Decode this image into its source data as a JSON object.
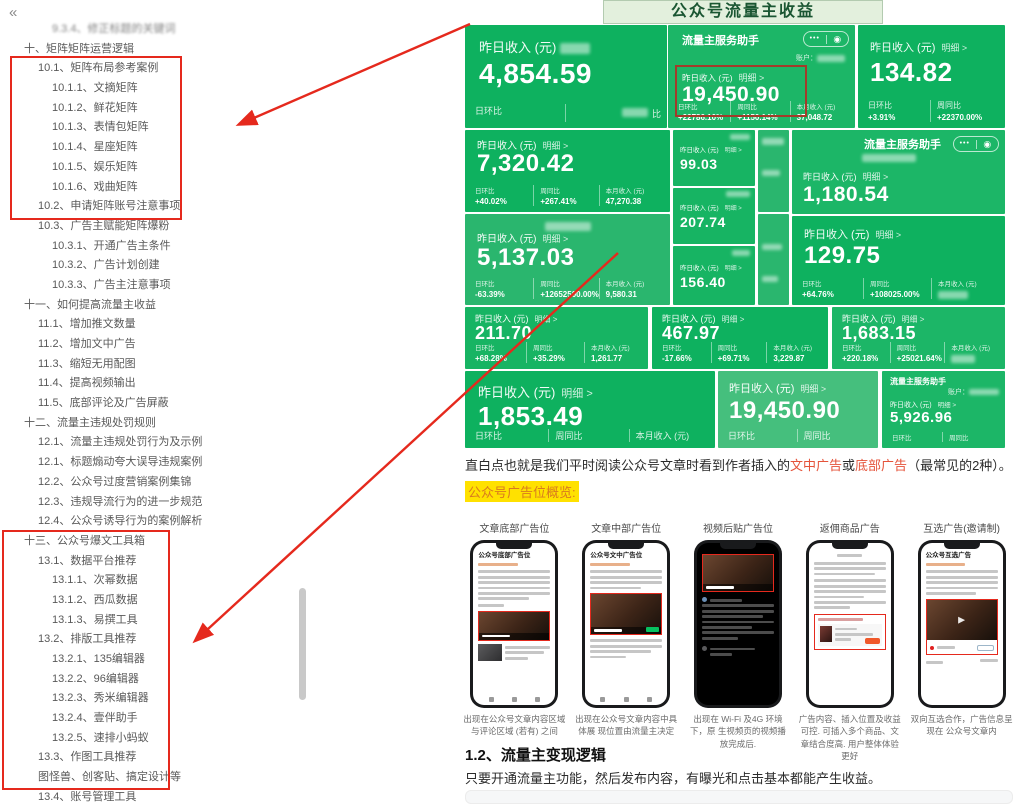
{
  "colors": {
    "accent_red": "#e5291d",
    "wechat_green": "#0eb15f",
    "highlight_yellow": "#ffe100",
    "banner_green": "#1a5632"
  },
  "sidebar": {
    "collapse_icon": "«",
    "items": [
      {
        "label": "9.3.4、修正标题的关键词",
        "level": 2
      },
      {
        "label": "十、矩阵矩阵运营逻辑",
        "level": 0
      },
      {
        "label": "10.1、矩阵布局参考案例",
        "level": 1
      },
      {
        "label": "10.1.1、文摘矩阵",
        "level": 2
      },
      {
        "label": "10.1.2、鲜花矩阵",
        "level": 2
      },
      {
        "label": "10.1.3、表情包矩阵",
        "level": 2
      },
      {
        "label": "10.1.4、星座矩阵",
        "level": 2
      },
      {
        "label": "10.1.5、娱乐矩阵",
        "level": 2
      },
      {
        "label": "10.1.6、戏曲矩阵",
        "level": 2
      },
      {
        "label": "10.2、申请矩阵账号注意事项",
        "level": 1
      },
      {
        "label": "10.3、广告主赋能矩阵爆粉",
        "level": 1
      },
      {
        "label": "10.3.1、开通广告主条件",
        "level": 2
      },
      {
        "label": "10.3.2、广告计划创建",
        "level": 2
      },
      {
        "label": "10.3.3、广告主注意事项",
        "level": 2
      },
      {
        "label": "十一、如何提高流量主收益",
        "level": 0
      },
      {
        "label": "11.1、增加推文数量",
        "level": 1
      },
      {
        "label": "11.2、增加文中广告",
        "level": 1
      },
      {
        "label": "11.3、缩短无用配图",
        "level": 1
      },
      {
        "label": "11.4、提高视频输出",
        "level": 1
      },
      {
        "label": "11.5、底部评论及广告屏蔽",
        "level": 1
      },
      {
        "label": "十二、流量主违规处罚规则",
        "level": 0
      },
      {
        "label": "12.1、流量主违规处罚行为及示例",
        "level": 1
      },
      {
        "label": "12.1、标题煽动夸大误导违规案例",
        "level": 1
      },
      {
        "label": "12.2、公众号过度营销案例集锦",
        "level": 1
      },
      {
        "label": "12.3、违规导流行为的进一步规范",
        "level": 1
      },
      {
        "label": "12.4、公众号诱导行为的案例解析",
        "level": 1
      },
      {
        "label": "十三、公众号爆文工具箱",
        "level": 0
      },
      {
        "label": "13.1、数据平台推荐",
        "level": 1
      },
      {
        "label": "13.1.1、次幂数据",
        "level": 2
      },
      {
        "label": "13.1.2、西瓜数据",
        "level": 2
      },
      {
        "label": "13.1.3、易撰工具",
        "level": 2
      },
      {
        "label": "13.2、排版工具推荐",
        "level": 1
      },
      {
        "label": "13.2.1、135编辑器",
        "level": 2
      },
      {
        "label": "13.2.2、96编辑器",
        "level": 2
      },
      {
        "label": "13.2.3、秀米编辑器",
        "level": 2
      },
      {
        "label": "13.2.4、壹伴助手",
        "level": 2
      },
      {
        "label": "13.2.5、速排小蚂蚁",
        "level": 2
      },
      {
        "label": "13.3、作图工具推荐",
        "level": 1
      },
      {
        "label": "图怪兽、创客贴、搞定设计等",
        "level": 1
      },
      {
        "label": "13.4、账号管理工具",
        "level": 1
      }
    ]
  },
  "collage": {
    "banner": "公众号流量主收益",
    "labels": {
      "yesterday": "昨日收入 (元)",
      "detail": "明细 >",
      "day": "日环比",
      "week": "周同比",
      "month": "本月收入 (元)",
      "app": "流量主服务助手",
      "account": "账户：",
      "ratio_suffix": "比",
      "dots": "•••",
      "target": "◉"
    },
    "cards": {
      "a1": {
        "value": "4,854.59"
      },
      "a2": {
        "value": "19,450.90",
        "day": "+22786.10%",
        "week": "+1150.14%",
        "month": "37,048.72"
      },
      "a3": {
        "value": "134.82",
        "day": "+3.91%",
        "week": "+22370.00%"
      },
      "b1": {
        "value": "7,320.42",
        "day": "+40.02%",
        "week": "+267.41%",
        "month": "47,270.38"
      },
      "c1": {
        "value": "5,137.03",
        "day": "-63.39%",
        "week": "+12652500.00%",
        "month": "9,580.31"
      },
      "d1": {
        "value": "99.03"
      },
      "d2": {
        "value": "207.74"
      },
      "d3": {
        "value": "156.40"
      },
      "f1": {
        "value": "1,180.54"
      },
      "f2": {
        "value": "129.75",
        "day": "+64.76%",
        "week": "+108025.00%"
      },
      "g1": {
        "value": "211.70",
        "day": "+68.28%",
        "week": "+35.29%",
        "month": "1,261.77"
      },
      "g2": {
        "value": "467.97",
        "day": "-17.66%",
        "week": "+69.71%",
        "month": "3,229.87"
      },
      "g3": {
        "value": "1,683.15",
        "day": "+220.18%",
        "week": "+25021.64%"
      },
      "h1": {
        "value": "1,853.49"
      },
      "h2": {
        "value": "19,450.90"
      },
      "h3": {
        "value": "5,926.96"
      }
    }
  },
  "ads": {
    "intro_before": "直白点也就是我们平时阅读公众号文章时看到作者插入的",
    "intro_red1": "文中广告",
    "intro_mid": "或",
    "intro_red2": "底部广告",
    "intro_after": "（最常见的2种）。",
    "highlight": "公众号广告位概览:",
    "columns": [
      {
        "label": "文章底部广告位",
        "screen_title": "公众号底部广告位",
        "caption": "出现在公众号文章内容区域 与评论区域 (若有) 之间"
      },
      {
        "label": "文章中部广告位",
        "screen_title": "公众号文中广告位",
        "caption": "出现在公众号文章内容中具体展 现位置由流量主决定"
      },
      {
        "label": "视频后贴广告位",
        "screen_title": "",
        "caption": "出现在 Wi-Fi 及4G 环境下，原 生视频页的视频播放完成后."
      },
      {
        "label": "返佣商品广告",
        "screen_title": "",
        "caption": "广告内容、插入位置及收益可控. 可插入多个商品、文章结合度高. 用户整体体验更好"
      },
      {
        "label": "互选广告(邀请制)",
        "screen_title": "公众号互选广告",
        "caption": "双向互选合作，广告信息呈现在 公众号文章内"
      }
    ],
    "play_icon": "▶"
  },
  "section": {
    "heading": "1.2、流量主变现逻辑",
    "body": "只要开通流量主功能，然后发布内容，有曝光和点击基本都能产生收益。"
  }
}
